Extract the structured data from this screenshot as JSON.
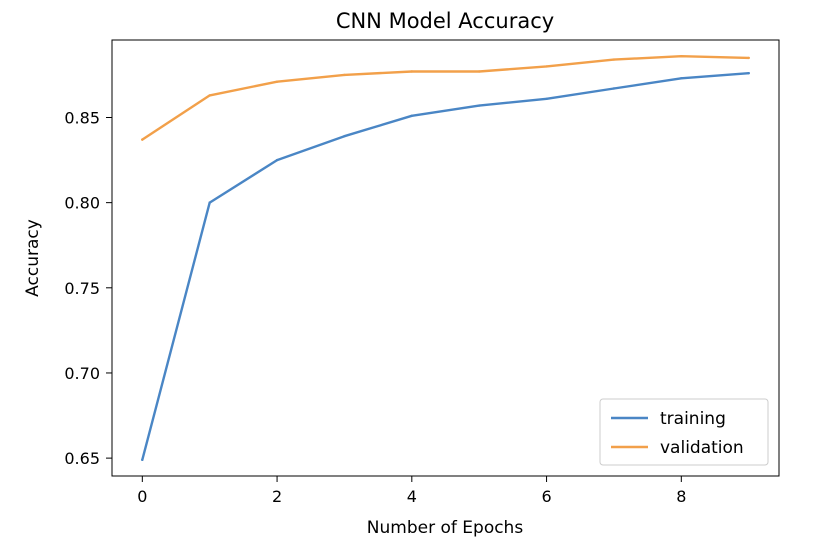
{
  "chart_data": {
    "type": "line",
    "title": "CNN Model Accuracy",
    "xlabel": "Number of Epochs",
    "ylabel": "Accuracy",
    "xlim": [
      -0.45,
      9.45
    ],
    "ylim": [
      0.6395,
      0.8955
    ],
    "xticks": [
      0,
      2,
      4,
      6,
      8
    ],
    "xtick_labels": [
      "0",
      "2",
      "4",
      "6",
      "8"
    ],
    "yticks": [
      0.65,
      0.7,
      0.75,
      0.8,
      0.85
    ],
    "ytick_labels": [
      "0.65",
      "0.70",
      "0.75",
      "0.80",
      "0.85"
    ],
    "grid": false,
    "legend_position": "lower-right",
    "x": [
      0,
      1,
      2,
      3,
      4,
      5,
      6,
      7,
      8,
      9
    ],
    "series": [
      {
        "name": "training",
        "color": "#4a86c5",
        "values": [
          0.649,
          0.8,
          0.825,
          0.839,
          0.851,
          0.857,
          0.861,
          0.867,
          0.873,
          0.876
        ]
      },
      {
        "name": "validation",
        "color": "#f2a04a",
        "values": [
          0.837,
          0.863,
          0.871,
          0.875,
          0.877,
          0.877,
          0.88,
          0.884,
          0.886,
          0.885
        ]
      }
    ]
  }
}
